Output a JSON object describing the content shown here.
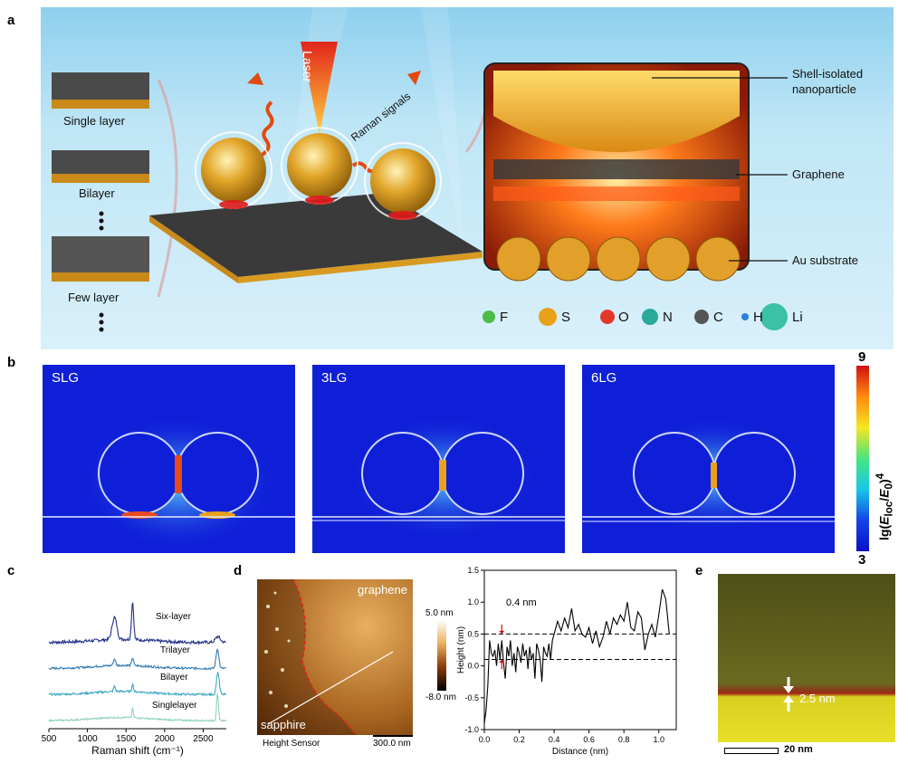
{
  "panels": {
    "a": "a",
    "b": "b",
    "c": "c",
    "d": "d",
    "e": "e"
  },
  "panel_a": {
    "layers": [
      "Single layer",
      "Bilayer",
      "Few layer"
    ],
    "laser": "Laser",
    "raman": "Raman signals",
    "callouts": [
      "Shell-isolated nanoparticle",
      "Graphene",
      "Au substrate"
    ],
    "legend": [
      {
        "sym": "F",
        "color": "#4cbb47"
      },
      {
        "sym": "S",
        "color": "#e8a21a"
      },
      {
        "sym": "O",
        "color": "#e23a2a"
      },
      {
        "sym": "N",
        "color": "#2aa99b"
      },
      {
        "sym": "C",
        "color": "#555555"
      },
      {
        "sym": "H",
        "color": "#2a7fd8"
      },
      {
        "sym": "Li",
        "color": "#3cc0a8"
      }
    ]
  },
  "panel_b": {
    "titles": [
      "SLG",
      "3LG",
      "6LG"
    ],
    "colorbar": {
      "max": "9",
      "min": "3",
      "label": "lg(E_loc/E_0)^4"
    }
  },
  "chart_data": [
    {
      "type": "line",
      "xlabel": "Raman shift (cm⁻¹)",
      "ylabel": "",
      "xlim": [
        500,
        2800
      ],
      "x_ticks": [
        "500",
        "1000",
        "1500",
        "2000",
        "2500"
      ],
      "series": [
        {
          "name": "Six-layer",
          "color": "#1f2f8a",
          "offset": 3.0,
          "peaks": [
            {
              "x": 1350,
              "h": 0.85,
              "w": 30
            },
            {
              "x": 1585,
              "h": 1.45,
              "w": 14
            },
            {
              "x": 2690,
              "h": 0.22,
              "w": 30
            }
          ],
          "baseline_noise": 0.06
        },
        {
          "name": "Trilayer",
          "color": "#2f7ab8",
          "offset": 2.0,
          "peaks": [
            {
              "x": 1350,
              "h": 0.25,
              "w": 14
            },
            {
              "x": 1585,
              "h": 0.3,
              "w": 12
            },
            {
              "x": 2685,
              "h": 0.75,
              "w": 18
            }
          ],
          "baseline_noise": 0.04
        },
        {
          "name": "Bilayer",
          "color": "#3fa8c4",
          "offset": 1.0,
          "peaks": [
            {
              "x": 1350,
              "h": 0.2,
              "w": 12
            },
            {
              "x": 1585,
              "h": 0.3,
              "w": 10
            },
            {
              "x": 2690,
              "h": 0.85,
              "w": 18
            }
          ],
          "baseline_noise": 0.04
        },
        {
          "name": "Singlelayer",
          "color": "#8fd3b6",
          "offset": 0.0,
          "peaks": [
            {
              "x": 1585,
              "h": 0.35,
              "w": 10
            },
            {
              "x": 2685,
              "h": 1.05,
              "w": 12
            }
          ],
          "baseline_noise": 0.03
        }
      ]
    },
    {
      "type": "line",
      "xlabel": "Distance (nm)",
      "ylabel": "Height (nm)",
      "xlim": [
        0,
        1.1
      ],
      "ylim": [
        -1.0,
        1.5
      ],
      "x_ticks": [
        "0.0",
        "0.2",
        "0.4",
        "0.6",
        "0.8",
        "1.0"
      ],
      "y_ticks": [
        "-1.0",
        "-0.5",
        "0.0",
        "0.5",
        "1.0",
        "1.5"
      ],
      "dashed_levels": [
        0.5,
        0.1
      ],
      "annotation": "0.4 nm",
      "series": [
        {
          "name": "",
          "color": "#000000",
          "x": [
            0.0,
            0.01,
            0.02,
            0.03,
            0.04,
            0.05,
            0.06,
            0.07,
            0.08,
            0.09,
            0.1,
            0.11,
            0.12,
            0.13,
            0.14,
            0.15,
            0.16,
            0.17,
            0.18,
            0.19,
            0.2,
            0.21,
            0.22,
            0.23,
            0.24,
            0.25,
            0.26,
            0.27,
            0.28,
            0.29,
            0.3,
            0.31,
            0.32,
            0.33,
            0.34,
            0.35,
            0.36,
            0.37,
            0.38,
            0.39,
            0.4,
            0.42,
            0.44,
            0.46,
            0.48,
            0.5,
            0.52,
            0.54,
            0.56,
            0.58,
            0.6,
            0.62,
            0.64,
            0.66,
            0.68,
            0.7,
            0.72,
            0.74,
            0.76,
            0.78,
            0.8,
            0.82,
            0.84,
            0.86,
            0.88,
            0.9,
            0.92,
            0.94,
            0.96,
            0.98,
            1.0,
            1.02,
            1.04,
            1.06
          ],
          "y": [
            -0.9,
            -0.7,
            -0.3,
            0.4,
            0.2,
            0.15,
            0.25,
            0.0,
            0.35,
            0.1,
            0.4,
            0.05,
            -0.2,
            0.3,
            0.15,
            0.4,
            0.0,
            0.2,
            -0.1,
            0.3,
            0.2,
            0.05,
            0.35,
            0.15,
            0.25,
            -0.05,
            0.3,
            0.1,
            0.2,
            -0.2,
            0.35,
            0.25,
            0.1,
            -0.25,
            0.3,
            0.2,
            0.15,
            0.35,
            0.1,
            0.4,
            0.5,
            0.7,
            0.55,
            0.75,
            0.6,
            0.9,
            0.55,
            0.65,
            0.5,
            0.45,
            0.6,
            0.35,
            0.55,
            0.3,
            0.45,
            0.7,
            0.5,
            0.75,
            0.65,
            0.8,
            0.7,
            1.0,
            0.6,
            0.55,
            0.85,
            0.75,
            0.25,
            0.5,
            0.65,
            0.45,
            0.8,
            1.2,
            1.05,
            0.5
          ]
        }
      ]
    }
  ],
  "panel_d": {
    "afm_labels": {
      "top": "graphene",
      "bottom": "sapphire",
      "sensor": "Height Sensor",
      "scale": "300.0 nm"
    },
    "afm_colorbar": {
      "max": "5.0 nm",
      "min": "-8.0 nm"
    }
  },
  "panel_e": {
    "thickness": "2.5 nm",
    "scale": "20 nm"
  }
}
